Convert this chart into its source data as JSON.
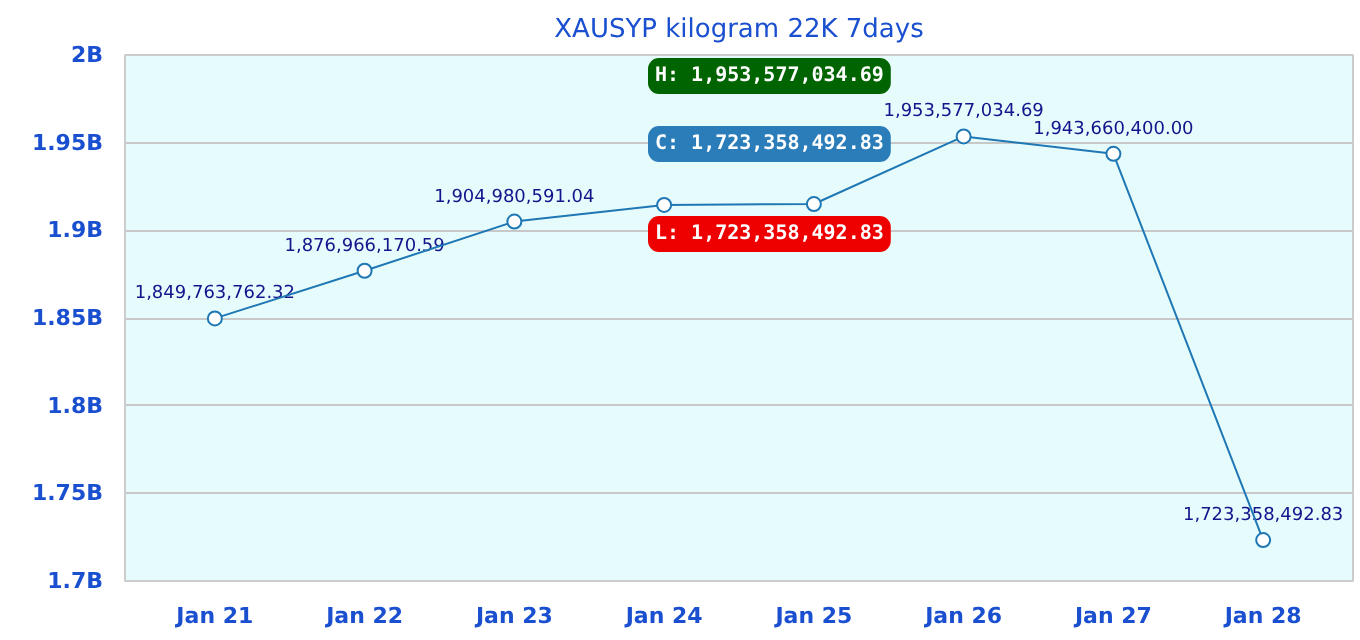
{
  "chart_data": {
    "type": "line",
    "title": "XAUSYP kilogram 22K 7days",
    "categories": [
      "Jan 21",
      "Jan 22",
      "Jan 23",
      "Jan 24",
      "Jan 25",
      "Jan 26",
      "Jan 27",
      "Jan 28"
    ],
    "series": [
      {
        "color": "#1f77b4",
        "values": [
          1849763762.32,
          1876966170.59,
          1904980591.04,
          1914500000,
          1915000000,
          1953577034.69,
          1943660400.0,
          1723358492.83
        ],
        "value_labels": [
          "1,849,763,762.32",
          "1,876,966,170.59",
          "1,904,980,591.04",
          null,
          null,
          "1,953,577,034.69",
          "1,943,660,400.00",
          "1,723,358,492.83"
        ]
      }
    ],
    "ylim": [
      1700000000,
      2000000000
    ],
    "yticks": [
      {
        "value": 1700000000,
        "label": "1.7B"
      },
      {
        "value": 1750000000,
        "label": "1.75B"
      },
      {
        "value": 1800000000,
        "label": "1.8B"
      },
      {
        "value": 1850000000,
        "label": "1.85B"
      },
      {
        "value": 1900000000,
        "label": "1.9B"
      },
      {
        "value": 1950000000,
        "label": "1.95B"
      },
      {
        "value": 2000000000,
        "label": "2B"
      }
    ],
    "grid": "y",
    "marker": "circle",
    "line_style": "solid",
    "annotations": [
      "H: 1,953,577,034.69",
      "C: 1,723,358,492.83",
      "L: 1,723,358,492.83"
    ]
  }
}
